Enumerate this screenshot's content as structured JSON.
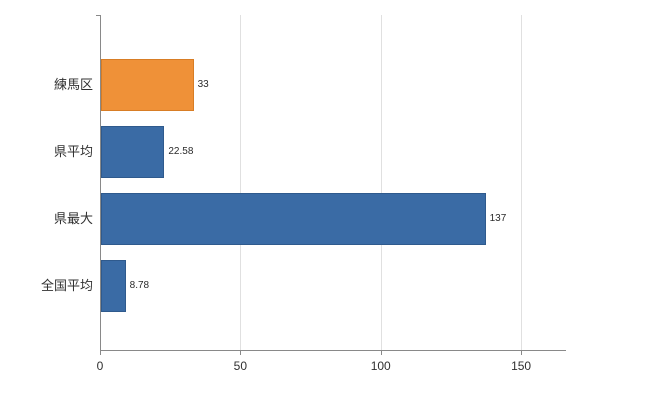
{
  "chart_data": {
    "type": "bar",
    "orientation": "horizontal",
    "title": "",
    "xlabel": "",
    "ylabel": "",
    "categories": [
      "練馬区",
      "県平均",
      "県最大",
      "全国平均"
    ],
    "values": [
      33,
      22.58,
      137,
      8.78
    ],
    "value_labels": [
      "33",
      "22.58",
      "137",
      "8.78"
    ],
    "bar_colors": [
      "#ef9138",
      "#3a6ba5",
      "#3a6ba5",
      "#3a6ba5"
    ],
    "bar_border_colors": [
      "#d87d25",
      "#2f5a8d",
      "#2f5a8d",
      "#2f5a8d"
    ],
    "xlim": [
      0,
      166
    ],
    "xticks": [
      0,
      50,
      100,
      150
    ],
    "xtick_labels": [
      "0",
      "50",
      "100",
      "150"
    ],
    "grid": "vertical",
    "legend": "none"
  },
  "colors": {
    "axis": "#898989",
    "grid": "#e0e0e0",
    "text": "#303030",
    "accent_orange": "#ef9138",
    "accent_blue": "#3a6ba5"
  }
}
